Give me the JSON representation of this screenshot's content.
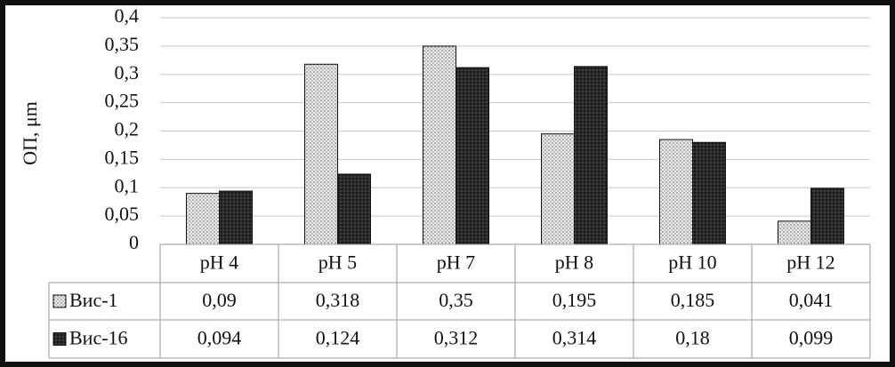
{
  "chart_data": {
    "type": "bar",
    "y_label": "ОП, μm",
    "categories": [
      "pH 4",
      "pH 5",
      "pH 7",
      "pH 8",
      "pH 10",
      "pH 12"
    ],
    "series": [
      {
        "name": "Вис-1",
        "color": "#e8e8e8",
        "values": [
          0.09,
          0.318,
          0.35,
          0.195,
          0.185,
          0.041
        ],
        "value_labels": [
          "0,09",
          "0,318",
          "0,35",
          "0,195",
          "0,185",
          "0,041"
        ]
      },
      {
        "name": "Вис-16",
        "color": "#2a2a2a",
        "values": [
          0.094,
          0.124,
          0.312,
          0.314,
          0.18,
          0.099
        ],
        "value_labels": [
          "0,094",
          "0,124",
          "0,312",
          "0,314",
          "0,18",
          "0,099"
        ]
      }
    ],
    "ylim": [
      0,
      0.4
    ],
    "yticks": [
      0,
      {
        "value": 0.05,
        "label": "0,05"
      },
      {
        "value": 0.1,
        "label": "0,1"
      },
      {
        "value": 0.15,
        "label": "0,15"
      },
      {
        "value": 0.2,
        "label": "0,2"
      },
      {
        "value": 0.25,
        "label": "0,25"
      },
      {
        "value": 0.3,
        "label": "0,3"
      },
      {
        "value": 0.35,
        "label": "0,35"
      },
      {
        "value": 0.4,
        "label": "0,4"
      }
    ],
    "grid": true,
    "data_table": true
  }
}
